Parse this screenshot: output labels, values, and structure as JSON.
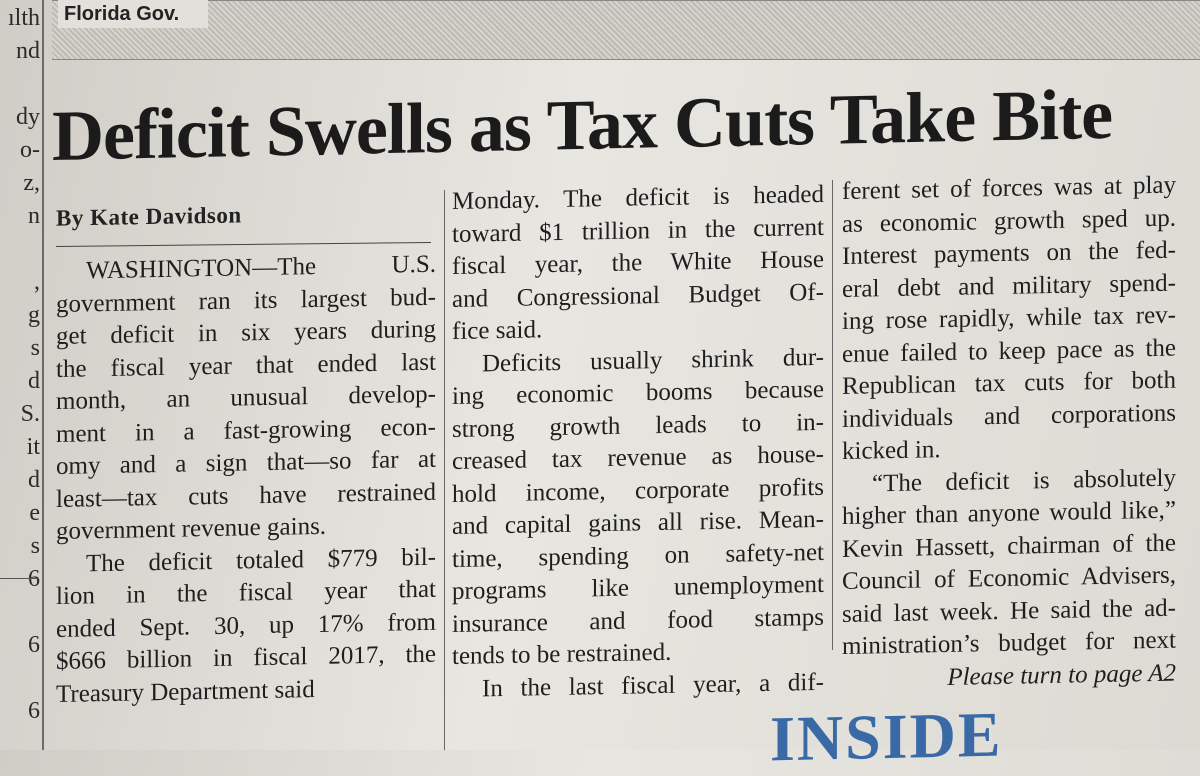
{
  "left_strip": [
    "ılth",
    "nd",
    "",
    "dy",
    "o-",
    "z,",
    "n",
    "",
    ",",
    "g",
    "s",
    "d",
    "S.",
    "it",
    "d",
    "e",
    "s",
    "6",
    "",
    "6",
    "",
    "6"
  ],
  "kicker": "Florida Gov.",
  "headline": "Deficit Swells as Tax Cuts Take Bite",
  "byline": "By Kate Davidson",
  "col1": [
    "WASHINGTON—The U.S.",
    "government ran its largest bud-",
    "get deficit in six years during",
    "the fiscal year that ended last",
    "month, an unusual develop-",
    "ment in a fast-growing econ-",
    "omy and a sign that—so far at",
    "least—tax cuts have restrained",
    "government revenue gains.",
    "The deficit totaled $779 bil-",
    "lion in the fiscal year that",
    "ended Sept. 30, up 17% from",
    "$666 billion in fiscal 2017, the",
    "Treasury Department said"
  ],
  "col2": [
    "Monday. The deficit is headed",
    "toward $1 trillion in the current",
    "fiscal year, the White House",
    "and Congressional Budget Of-",
    "fice said.",
    "Deficits usually shrink dur-",
    "ing economic booms because",
    "strong growth leads to in-",
    "creased tax revenue as house-",
    "hold income, corporate profits",
    "and capital gains all rise. Mean-",
    "time, spending on safety-net",
    "programs like unemployment",
    "insurance and food stamps",
    "tends to be restrained.",
    "In the last fiscal year, a dif-"
  ],
  "col3": [
    "ferent set of forces was at play",
    "as economic growth sped up.",
    "Interest payments on the fed-",
    "eral debt and military spend-",
    "ing rose rapidly, while tax rev-",
    "enue failed to keep pace as the",
    "Republican tax cuts for both",
    "individuals and corporations",
    "kicked in.",
    "“The deficit is absolutely",
    "higher than anyone would like,”",
    "Kevin Hassett, chairman of the",
    "Council of Economic Advisers,",
    "said last week. He said the ad-",
    "ministration’s budget for next"
  ],
  "jump_line": "Please turn to page A2",
  "inside_label": "INSIDE",
  "colors": {
    "paper": "#e4e2dc",
    "ink": "#1e1e1e",
    "inside_blue": "#3a6aa6"
  }
}
